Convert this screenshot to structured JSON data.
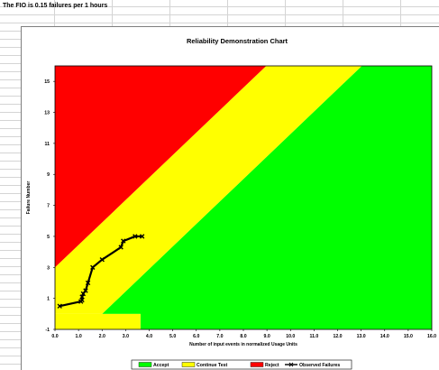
{
  "sheet": {
    "fio_text": "The FIO is 0.15 failures per 1 hours"
  },
  "chart_data": {
    "type": "area",
    "title": "Reliability Demonstration Chart",
    "xlabel": "Number of input events in normalized Usage Units",
    "ylabel": "Failure Number",
    "xlim": [
      0,
      16
    ],
    "ylim": [
      -1,
      16
    ],
    "x_ticks": [
      "0.0",
      "1.0",
      "2.0",
      "3.0",
      "4.0",
      "5.0",
      "6.0",
      "7.0",
      "8.0",
      "9.0",
      "10.0",
      "11.0",
      "12.0",
      "13.0",
      "14.0",
      "15.0",
      "16.0"
    ],
    "y_ticks": [
      "-1",
      "1",
      "3",
      "5",
      "7",
      "9",
      "11",
      "13",
      "15"
    ],
    "grid": false,
    "legend_position": "bottom",
    "regions": [
      {
        "name": "Accept",
        "color": "#00ff00",
        "polygon": [
          [
            2.0,
            0
          ],
          [
            3.63,
            0
          ],
          [
            3.63,
            -1
          ],
          [
            16,
            -1
          ],
          [
            16,
            16
          ],
          [
            13.03,
            16
          ],
          [
            2.0,
            0
          ]
        ]
      },
      {
        "name": "Continue Test",
        "color": "#ffff00",
        "polygon": [
          [
            0,
            3
          ],
          [
            8.97,
            16
          ],
          [
            13.03,
            16
          ],
          [
            2.0,
            0
          ],
          [
            0,
            0
          ]
        ]
      },
      {
        "name": "Reject",
        "color": "#ff0000",
        "polygon": [
          [
            0,
            3
          ],
          [
            0,
            16
          ],
          [
            8.97,
            16
          ]
        ]
      }
    ],
    "band": {
      "name": "Continue Test",
      "color": "#ffff00",
      "polygon": [
        [
          0,
          0
        ],
        [
          3.63,
          0
        ],
        [
          3.63,
          -1
        ],
        [
          0,
          -1
        ]
      ]
    },
    "series": [
      {
        "name": "Observed Failures",
        "color": "#000000",
        "x": [
          0.2,
          1.1,
          1.15,
          1.15,
          1.2,
          1.3,
          1.4,
          1.6,
          2.0,
          2.8,
          2.9,
          3.4,
          3.7
        ],
        "y": [
          0.5,
          0.8,
          0.9,
          1.1,
          1.3,
          1.5,
          2.0,
          3.0,
          3.5,
          4.3,
          4.7,
          5.0,
          5.0
        ]
      }
    ],
    "legend": [
      {
        "label": "Accept",
        "color": "#00ff00"
      },
      {
        "label": "Continue Test",
        "color": "#ffff00"
      },
      {
        "label": "Reject",
        "color": "#ff0000"
      },
      {
        "label": "Observed Failures",
        "color": "#000000"
      }
    ]
  }
}
